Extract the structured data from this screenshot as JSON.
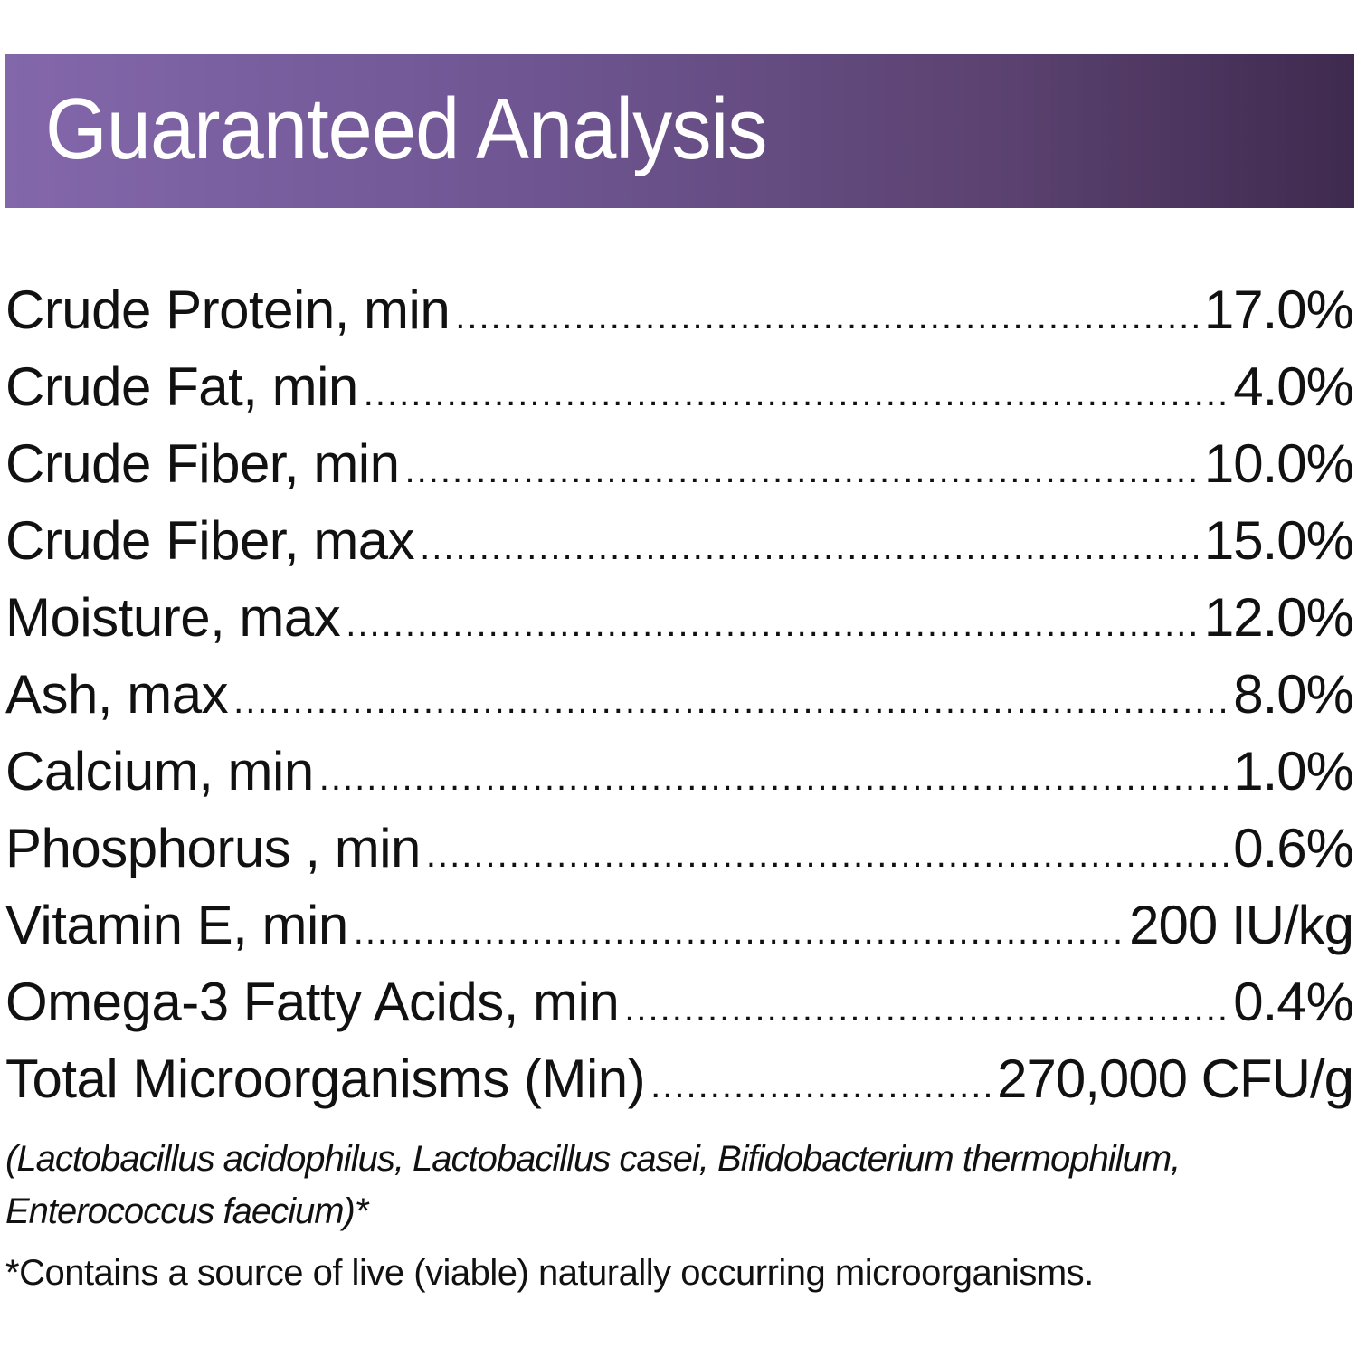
{
  "header": {
    "title": "Guaranteed Analysis",
    "gradient_start": "#8367ab",
    "gradient_end": "#3f2a4f"
  },
  "rows": [
    {
      "label": "Crude Protein, min",
      "value": "17.0%"
    },
    {
      "label": "Crude Fat, min",
      "value": "4.0%"
    },
    {
      "label": "Crude Fiber, min",
      "value": "10.0%"
    },
    {
      "label": "Crude Fiber, max",
      "value": "15.0%"
    },
    {
      "label": "Moisture, max",
      "value": "12.0%"
    },
    {
      "label": "Ash, max",
      "value": "8.0%"
    },
    {
      "label": "Calcium, min",
      "value": "1.0%"
    },
    {
      "label": "Phosphorus , min",
      "value": "0.6%"
    },
    {
      "label": "Vitamin E, min",
      "value": "200 IU/kg"
    },
    {
      "label": "Omega-3 Fatty Acids, min",
      "value": "0.4%"
    },
    {
      "label": "Total Microorganisms (Min)",
      "value": "270,000 CFU/g"
    }
  ],
  "species": "(Lactobacillus acidophilus, Lactobacillus casei, Bifidobacterium thermophilum, Enterococcus faecium)*",
  "footnote": "*Contains a source of live (viable) naturally occurring microorganisms."
}
